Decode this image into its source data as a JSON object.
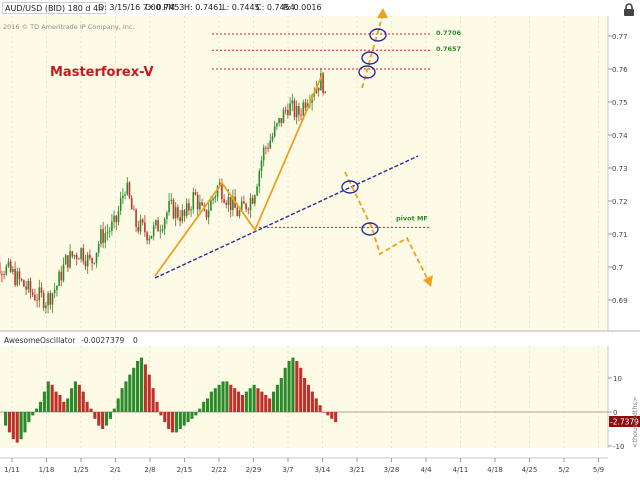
{
  "header": {
    "symbol": "AUD/USD (BID) 180 d 4h",
    "date": "D: 3/15/16 7:00 PM",
    "open": "O: 0.7453",
    "high": "H: 0.7461",
    "low": "L: 0.7445",
    "close": "C: 0.7454",
    "range": "R: 0.0016",
    "copyright": "2016 © TD Ameritrade IP Company, Inc."
  },
  "chart_data": [
    {
      "type": "line",
      "title": "",
      "watermark": "Masterforex-V",
      "ylim": [
        0.68,
        0.78
      ],
      "y_ticks": [
        "0.77",
        "0.76",
        "0.75",
        "0.74",
        "0.73",
        "0.72",
        "0.71",
        "0.7",
        "0.69"
      ],
      "x_ticks": [
        "1/11",
        "1/18",
        "1/25",
        "2/1",
        "2/8",
        "2/15",
        "2/22",
        "2/29",
        "3/7",
        "3/14",
        "3/21",
        "3/28",
        "4/4",
        "4/11",
        "4/18",
        "4/25",
        "5/2",
        "5/9"
      ],
      "series": [
        {
          "x": [
            "1/7",
            "1/11",
            "1/13",
            "1/15",
            "1/18",
            "1/20",
            "1/22",
            "1/25",
            "1/27",
            "1/29",
            "2/1",
            "2/3",
            "2/5",
            "2/8",
            "2/10",
            "2/12",
            "2/15",
            "2/17",
            "2/19",
            "2/22",
            "2/24",
            "2/26",
            "2/29",
            "3/2",
            "3/4",
            "3/7",
            "3/9",
            "3/11",
            "3/14",
            "3/15"
          ],
          "values": [
            0.702,
            0.698,
            0.695,
            0.692,
            0.69,
            0.694,
            0.702,
            0.705,
            0.701,
            0.709,
            0.713,
            0.725,
            0.713,
            0.71,
            0.713,
            0.718,
            0.715,
            0.722,
            0.715,
            0.725,
            0.72,
            0.716,
            0.722,
            0.735,
            0.74,
            0.749,
            0.746,
            0.752,
            0.757,
            0.745
          ]
        }
      ],
      "levels": [
        {
          "label": "0.7706",
          "value": 0.7706
        },
        {
          "label": "0.7657",
          "value": 0.7657
        },
        {
          "label": "",
          "value": 0.76
        },
        {
          "label": "pivot MF",
          "value": 0.712
        }
      ],
      "colors": {
        "up": "#2a8a2a",
        "down": "#c0302a",
        "pattern": "#f0a020",
        "trend": "#2a2aa0",
        "level": "#d02020",
        "label": "#2a8a2a",
        "plot_bg": "#fdfbe6"
      }
    },
    {
      "type": "bar",
      "title": "AwesomeOscillator",
      "current_value": "-0.0027379",
      "indicator_value": "0",
      "badge": "-2.7379",
      "axis_label": "<thousandths>",
      "ylim": [
        -13,
        18
      ],
      "y_ticks": [
        "10",
        "0",
        "-10"
      ],
      "values": [
        -4,
        -6,
        -8,
        -9,
        -8,
        -6,
        -3,
        -1,
        1,
        3,
        6,
        9,
        8,
        6,
        5,
        3,
        4,
        7,
        9,
        8,
        6,
        3,
        1,
        -2,
        -4,
        -5,
        -4,
        -2,
        1,
        4,
        7,
        9,
        11,
        13,
        15,
        16,
        14,
        11,
        7,
        3,
        -1,
        -3,
        -5,
        -6,
        -6,
        -5,
        -4,
        -3,
        -2,
        -1,
        1,
        3,
        4,
        6,
        7,
        8,
        9,
        9,
        8,
        7,
        6,
        5,
        6,
        7,
        8,
        7,
        6,
        5,
        4,
        6,
        8,
        10,
        13,
        15,
        16,
        15,
        13,
        10,
        8,
        6,
        4,
        2,
        0,
        -1,
        -2,
        -3
      ]
    }
  ]
}
